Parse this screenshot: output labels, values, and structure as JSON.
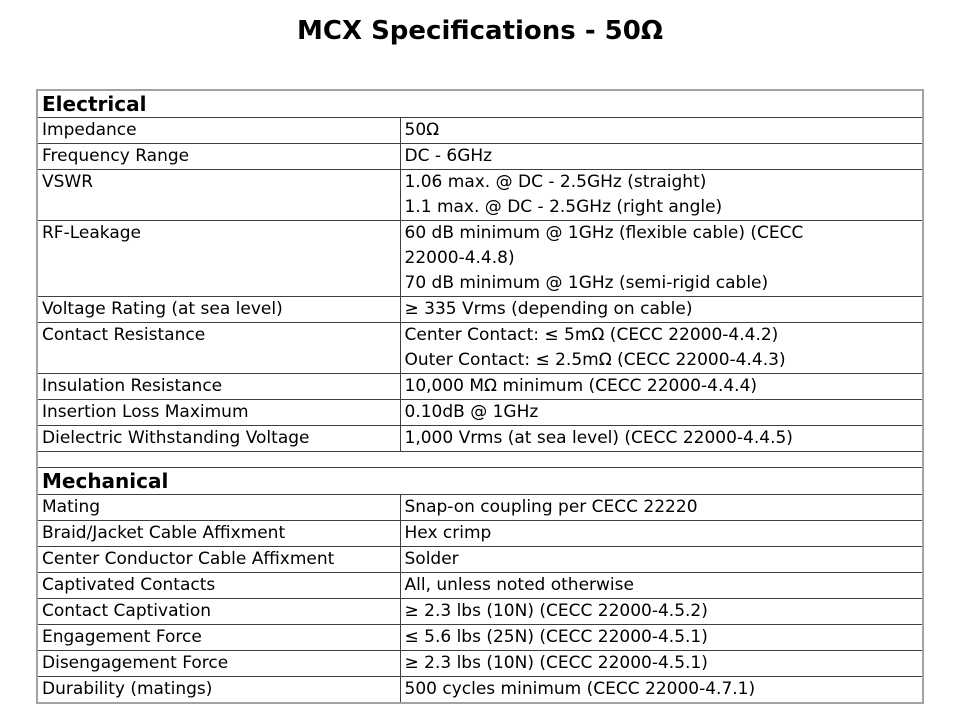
{
  "page_title": "MCX Specifications - 50Ω",
  "table": {
    "sections": [
      {
        "title": "Electrical",
        "rows": [
          {
            "label": "Impedance",
            "value_lines": [
              "50Ω"
            ]
          },
          {
            "label": "Frequency Range",
            "value_lines": [
              "DC - 6GHz"
            ]
          },
          {
            "label": "VSWR",
            "value_lines": [
              "1.06 max. @ DC - 2.5GHz (straight)",
              "1.1 max. @ DC - 2.5GHz (right angle)"
            ]
          },
          {
            "label": "RF-Leakage",
            "value_lines": [
              "60 dB minimum @ 1GHz (flexible cable) (CECC",
              "22000-4.4.8)",
              "70 dB minimum @ 1GHz (semi-rigid cable)"
            ]
          },
          {
            "label": "Voltage Rating (at sea level)",
            "value_lines": [
              "≥ 335 Vrms (depending on cable)"
            ]
          },
          {
            "label": "Contact Resistance",
            "value_lines": [
              "Center Contact: ≤ 5mΩ (CECC 22000-4.4.2)",
              "Outer Contact: ≤ 2.5mΩ (CECC 22000-4.4.3)"
            ]
          },
          {
            "label": "Insulation Resistance",
            "value_lines": [
              "10,000 MΩ minimum (CECC 22000-4.4.4)"
            ]
          },
          {
            "label": "Insertion Loss Maximum",
            "value_lines": [
              "0.10dB @ 1GHz"
            ]
          },
          {
            "label": "Dielectric Withstanding Voltage",
            "value_lines": [
              "1,000 Vrms (at sea level) (CECC 22000-4.4.5)"
            ]
          }
        ]
      },
      {
        "title": "Mechanical",
        "rows": [
          {
            "label": "Mating",
            "value_lines": [
              "Snap-on coupling per CECC 22220"
            ]
          },
          {
            "label": "Braid/Jacket Cable Affixment",
            "value_lines": [
              "Hex crimp"
            ]
          },
          {
            "label": "Center Conductor Cable Affixment",
            "value_lines": [
              "Solder"
            ]
          },
          {
            "label": "Captivated Contacts",
            "value_lines": [
              "All, unless noted otherwise"
            ]
          },
          {
            "label": "Contact Captivation",
            "value_lines": [
              "≥ 2.3 lbs (10N) (CECC 22000-4.5.2)"
            ]
          },
          {
            "label": "Engagement Force",
            "value_lines": [
              "≤ 5.6 lbs (25N) (CECC 22000-4.5.1)"
            ]
          },
          {
            "label": "Disengagement Force",
            "value_lines": [
              "≥ 2.3 lbs (10N) (CECC 22000-4.5.1)"
            ]
          },
          {
            "label": "Durability (matings)",
            "value_lines": [
              "500 cycles minimum (CECC 22000-4.7.1)"
            ]
          }
        ]
      }
    ],
    "colors": {
      "outer_border": "#a3a3a3",
      "inner_border": "#3f3f3f",
      "text": "#000000",
      "background": "#ffffff"
    }
  }
}
